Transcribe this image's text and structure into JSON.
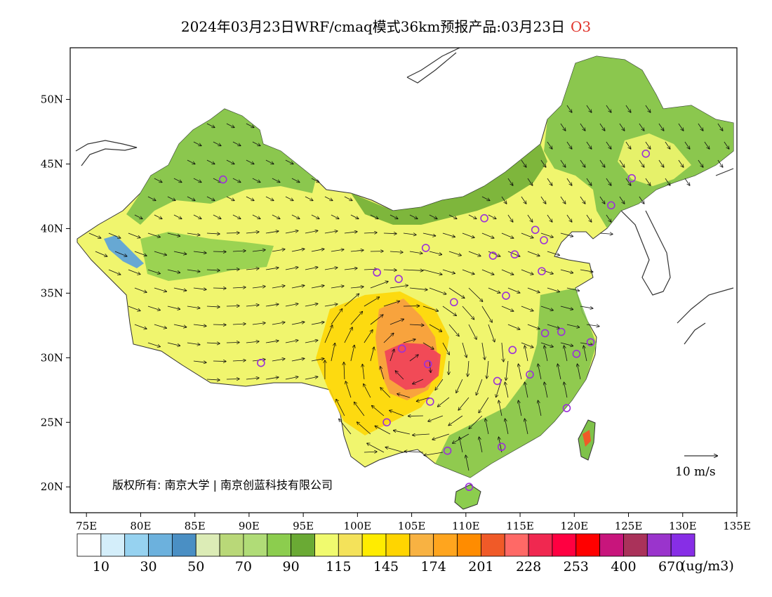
{
  "title": {
    "text": "2024年03月23日WRF/cmaq模式36km预报产品:03月23日",
    "species": "O3",
    "species_color": "#e0322a"
  },
  "map": {
    "lon_range": [
      73.5,
      135
    ],
    "lat_range": [
      18,
      54
    ],
    "lon_ticks": [
      "75E",
      "80E",
      "85E",
      "90E",
      "95E",
      "100E",
      "105E",
      "110E",
      "115E",
      "120E",
      "125E",
      "130E",
      "135E"
    ],
    "lat_ticks": [
      "20N",
      "25N",
      "30N",
      "35N",
      "40N",
      "45N",
      "50N"
    ],
    "vector_reference": "10 m/s",
    "copyright": "版权所有: 南京大学 | 南京创蓝科技有限公司",
    "stations": [
      [
        87.6,
        43.8
      ],
      [
        91.1,
        29.6
      ],
      [
        101.8,
        36.6
      ],
      [
        103.8,
        36.1
      ],
      [
        106.3,
        38.5
      ],
      [
        108.9,
        34.3
      ],
      [
        104.1,
        30.7
      ],
      [
        106.5,
        29.5
      ],
      [
        106.7,
        26.6
      ],
      [
        102.7,
        25.0
      ],
      [
        108.3,
        22.8
      ],
      [
        110.3,
        20.0
      ],
      [
        113.3,
        23.1
      ],
      [
        112.9,
        28.2
      ],
      [
        114.3,
        30.6
      ],
      [
        115.9,
        28.7
      ],
      [
        117.3,
        31.9
      ],
      [
        118.8,
        32.0
      ],
      [
        119.3,
        26.1
      ],
      [
        120.2,
        30.3
      ],
      [
        121.5,
        31.2
      ],
      [
        113.7,
        34.8
      ],
      [
        117.0,
        36.7
      ],
      [
        114.5,
        38.0
      ],
      [
        112.5,
        37.9
      ],
      [
        111.7,
        40.8
      ],
      [
        116.4,
        39.9
      ],
      [
        117.2,
        39.1
      ],
      [
        123.4,
        41.8
      ],
      [
        125.3,
        43.9
      ],
      [
        126.6,
        45.8
      ]
    ]
  },
  "colorbar": {
    "colors": [
      "#ffffff",
      "#d4eefa",
      "#96d2f0",
      "#6cb1dd",
      "#4a8fc4",
      "#dcecb6",
      "#b9d878",
      "#b0dc77",
      "#8ccd4e",
      "#6aaa34",
      "#f0fa6e",
      "#f4e25a",
      "#ffec00",
      "#ffd500",
      "#f8b242",
      "#ffa51e",
      "#ff8c00",
      "#f05a28",
      "#ff6966",
      "#f02850",
      "#ff0041",
      "#ff0000",
      "#c8157c",
      "#aa325a",
      "#9a34cc",
      "#872ee6"
    ],
    "labels": [
      "10",
      "30",
      "50",
      "70",
      "90",
      "115",
      "145",
      "174",
      "201",
      "228",
      "253",
      "400",
      "670"
    ],
    "unit": "(ug/m3)"
  }
}
